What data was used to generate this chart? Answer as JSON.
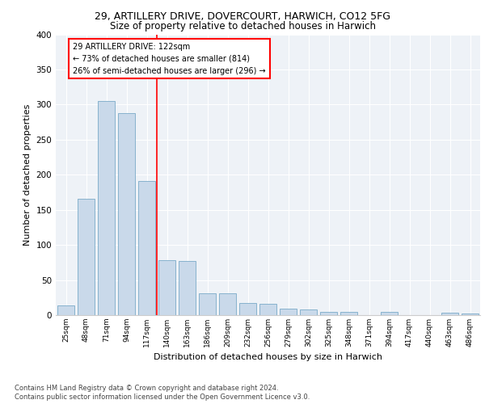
{
  "title1": "29, ARTILLERY DRIVE, DOVERCOURT, HARWICH, CO12 5FG",
  "title2": "Size of property relative to detached houses in Harwich",
  "xlabel": "Distribution of detached houses by size in Harwich",
  "ylabel": "Number of detached properties",
  "categories": [
    "25sqm",
    "48sqm",
    "71sqm",
    "94sqm",
    "117sqm",
    "140sqm",
    "163sqm",
    "186sqm",
    "209sqm",
    "232sqm",
    "256sqm",
    "279sqm",
    "302sqm",
    "325sqm",
    "348sqm",
    "371sqm",
    "394sqm",
    "417sqm",
    "440sqm",
    "463sqm",
    "486sqm"
  ],
  "values": [
    14,
    166,
    305,
    288,
    191,
    78,
    77,
    31,
    31,
    17,
    16,
    9,
    8,
    5,
    5,
    0,
    5,
    0,
    0,
    3,
    2
  ],
  "bar_color": "#c9d9ea",
  "bar_edge_color": "#7aaac8",
  "annotation_text1": "29 ARTILLERY DRIVE: 122sqm",
  "annotation_text2": "← 73% of detached houses are smaller (814)",
  "annotation_text3": "26% of semi-detached houses are larger (296) →",
  "annotation_box_color": "white",
  "annotation_box_edge_color": "red",
  "vline_color": "red",
  "vline_x_index": 4.5,
  "footer1": "Contains HM Land Registry data © Crown copyright and database right 2024.",
  "footer2": "Contains public sector information licensed under the Open Government Licence v3.0.",
  "background_color": "#eef2f7",
  "ylim": [
    0,
    400
  ],
  "yticks": [
    0,
    50,
    100,
    150,
    200,
    250,
    300,
    350,
    400
  ]
}
